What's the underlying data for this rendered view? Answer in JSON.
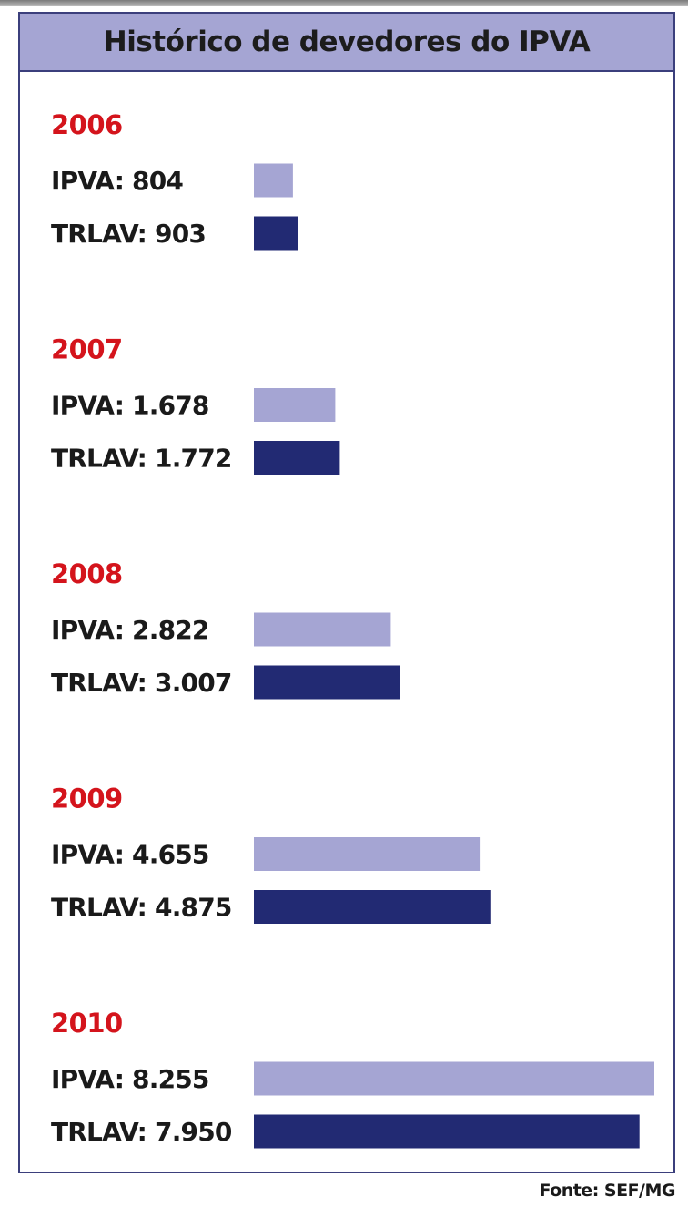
{
  "chart_data": {
    "type": "bar",
    "orientation": "horizontal",
    "title": "Histórico de devedores do IPVA",
    "source": "Fonte: SEF/MG",
    "colors": {
      "IPVA": "#a5a5d3",
      "TRLAV": "#222a73",
      "year": "#d4141c",
      "frame": "#3b3f7c"
    },
    "groups": [
      {
        "year": "2006",
        "bars": [
          {
            "series": "IPVA",
            "label": "IPVA: 804",
            "value": 804
          },
          {
            "series": "TRLAV",
            "label": "TRLAV: 903",
            "value": 903
          }
        ]
      },
      {
        "year": "2007",
        "bars": [
          {
            "series": "IPVA",
            "label": "IPVA: 1.678",
            "value": 1678
          },
          {
            "series": "TRLAV",
            "label": "TRLAV: 1.772",
            "value": 1772
          }
        ]
      },
      {
        "year": "2008",
        "bars": [
          {
            "series": "IPVA",
            "label": "IPVA: 2.822",
            "value": 2822
          },
          {
            "series": "TRLAV",
            "label": "TRLAV: 3.007",
            "value": 3007
          }
        ]
      },
      {
        "year": "2009",
        "bars": [
          {
            "series": "IPVA",
            "label": "IPVA: 4.655",
            "value": 4655
          },
          {
            "series": "TRLAV",
            "label": "TRLAV: 4.875",
            "value": 4875
          }
        ]
      },
      {
        "year": "2010",
        "bars": [
          {
            "series": "IPVA",
            "label": "IPVA: 8.255",
            "value": 8255
          },
          {
            "series": "TRLAV",
            "label": "TRLAV: 7.950",
            "value": 7950
          }
        ]
      }
    ]
  }
}
